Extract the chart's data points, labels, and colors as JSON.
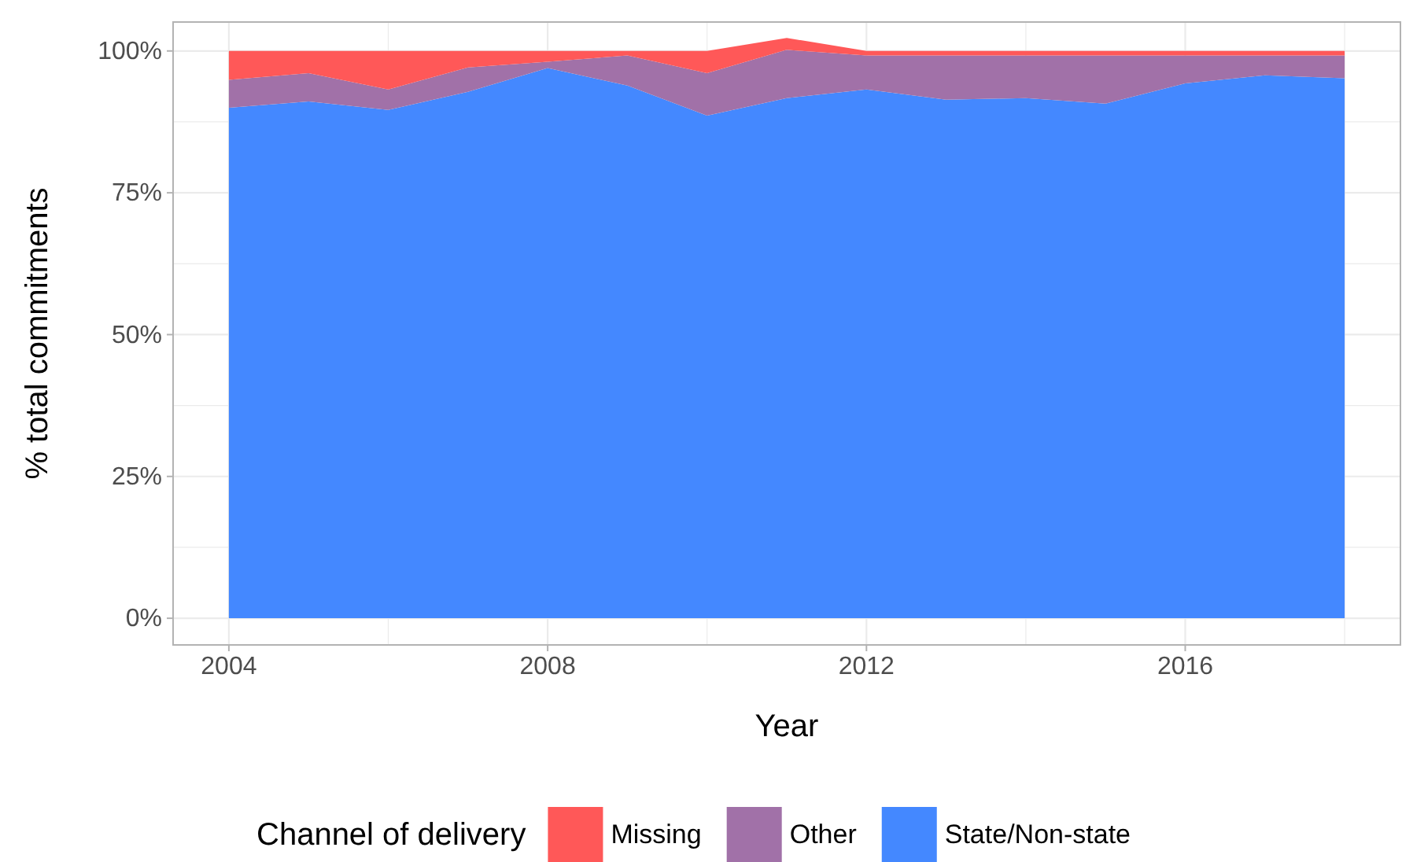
{
  "chart_data": {
    "type": "area",
    "stacked": true,
    "xlabel": "Year",
    "ylabel": "% total commitments",
    "legend_title": "Channel of delivery",
    "legend": "bottom",
    "grid": true,
    "x": [
      2004,
      2005,
      2006,
      2007,
      2008,
      2009,
      2010,
      2011,
      2012,
      2013,
      2014,
      2015,
      2016,
      2017,
      2018
    ],
    "series": [
      {
        "name": "State/Non-state",
        "color": "#4488ff",
        "values": [
          90.0,
          91.1,
          89.6,
          92.8,
          97.0,
          93.9,
          88.6,
          91.7,
          93.2,
          91.4,
          91.7,
          90.7,
          94.3,
          95.7,
          95.2
        ]
      },
      {
        "name": "Other",
        "color": "#a171a8",
        "values": [
          4.9,
          5.0,
          3.6,
          4.3,
          1.1,
          5.3,
          7.5,
          8.5,
          6.0,
          7.8,
          7.5,
          8.5,
          4.9,
          3.5,
          4.0
        ]
      },
      {
        "name": "Missing",
        "color": "#ff5858",
        "values": [
          5.1,
          3.9,
          6.8,
          2.9,
          1.9,
          0.8,
          3.9,
          2.1,
          0.8,
          0.8,
          0.8,
          0.8,
          0.8,
          0.8,
          0.8
        ]
      }
    ],
    "xlim": [
      2003.3,
      2018.7
    ],
    "xticks": [
      2004,
      {
        "value": 2006,
        "label": null
      },
      2008,
      {
        "value": 2010,
        "label": null
      },
      2012,
      {
        "value": 2014,
        "label": null
      },
      2016,
      {
        "value": 2018,
        "label": null
      }
    ],
    "ylim": [
      -4.7,
      105.1
    ],
    "yticks": [
      {
        "value": 0,
        "label": "0%"
      },
      {
        "value": 12.5,
        "label": null
      },
      {
        "value": 25,
        "label": "25%"
      },
      {
        "value": 37.5,
        "label": null
      },
      {
        "value": 50,
        "label": "50%"
      },
      {
        "value": 62.5,
        "label": null
      },
      {
        "value": 75,
        "label": "75%"
      },
      {
        "value": 87.5,
        "label": null
      },
      {
        "value": 100,
        "label": "100%"
      }
    ]
  }
}
